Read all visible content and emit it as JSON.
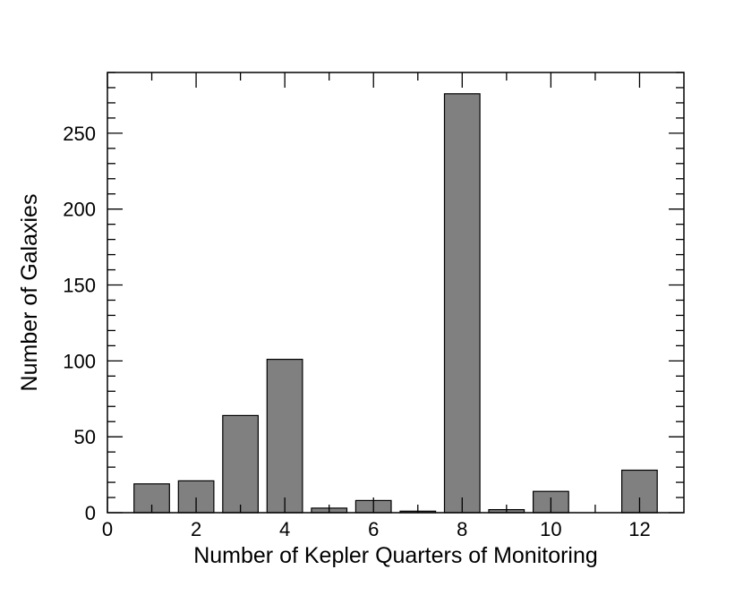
{
  "chart_data": {
    "type": "bar",
    "title": "",
    "xlabel": "Number of Kepler Quarters of Monitoring",
    "ylabel": "Number of Galaxies",
    "xlim": [
      0,
      13
    ],
    "ylim": [
      0,
      290
    ],
    "x_ticks": [
      0,
      2,
      4,
      6,
      8,
      10,
      12
    ],
    "x_minor_ticks": [
      1,
      3,
      5,
      7,
      9,
      11
    ],
    "y_ticks": [
      0,
      50,
      100,
      150,
      200,
      250
    ],
    "y_minor_step": 10,
    "grid": false,
    "bar_color": "#808080",
    "bar_edge_color": "#000000",
    "bar_width": 0.8,
    "x": [
      1,
      2,
      3,
      4,
      5,
      6,
      7,
      8,
      9,
      10,
      11,
      12
    ],
    "values": [
      19,
      21,
      64,
      101,
      3,
      8,
      1,
      276,
      2,
      14,
      0,
      28
    ]
  }
}
